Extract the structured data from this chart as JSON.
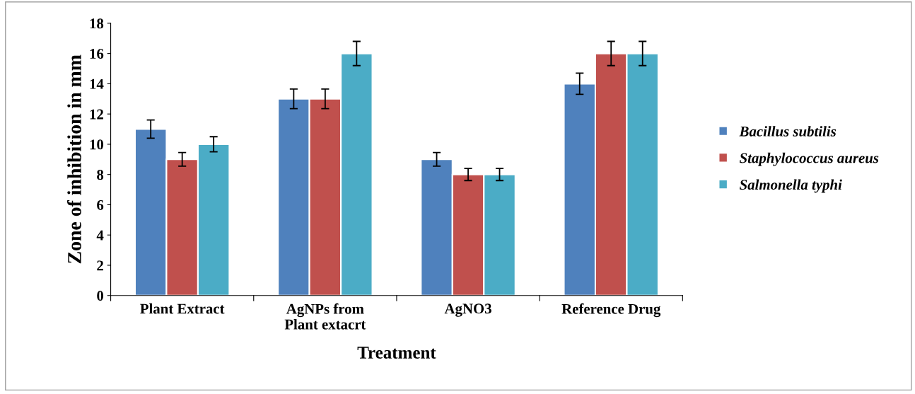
{
  "chart_data": {
    "type": "bar",
    "xlabel": "Treatment",
    "ylabel": "Zone of inhibition in mm",
    "categories": [
      "Plant Extract",
      "AgNPs from\nPlant extacrt",
      "AgNO3",
      "Reference Drug"
    ],
    "series": [
      {
        "name": "Bacillus subtilis",
        "color": "#4f81bd",
        "values": [
          11,
          13,
          9,
          14
        ],
        "errors": [
          0.6,
          0.65,
          0.45,
          0.7
        ]
      },
      {
        "name": "Staphylococcus aureus",
        "color": "#c0504d",
        "values": [
          9,
          13,
          8,
          16
        ],
        "errors": [
          0.45,
          0.65,
          0.4,
          0.8
        ]
      },
      {
        "name": "Salmonella typhi",
        "color": "#4bacc6",
        "values": [
          10,
          16,
          8,
          16
        ],
        "errors": [
          0.5,
          0.8,
          0.4,
          0.8
        ]
      }
    ],
    "ylim": [
      0,
      18
    ],
    "yticks": [
      0,
      2,
      4,
      6,
      8,
      10,
      12,
      14,
      16,
      18
    ],
    "grid": false,
    "legend": "right"
  }
}
